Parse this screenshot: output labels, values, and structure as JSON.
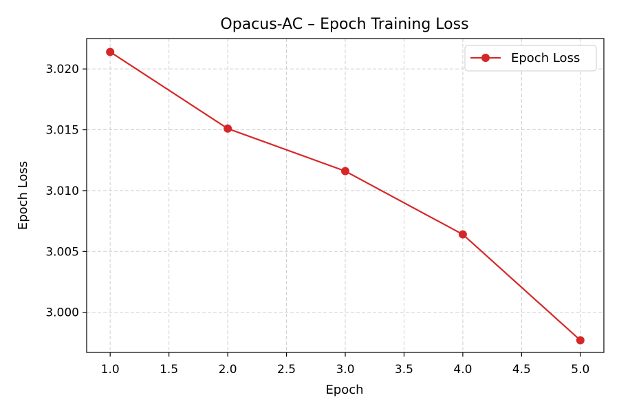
{
  "chart_data": {
    "type": "line",
    "title": "Opacus-AC – Epoch Training Loss",
    "xlabel": "Epoch",
    "ylabel": "Epoch Loss",
    "xlim": [
      0.8,
      5.2
    ],
    "ylim": [
      2.9967,
      3.0225
    ],
    "x_ticks": [
      1.0,
      1.5,
      2.0,
      2.5,
      3.0,
      3.5,
      4.0,
      4.5,
      5.0
    ],
    "x_tick_labels": [
      "1.0",
      "1.5",
      "2.0",
      "2.5",
      "3.0",
      "3.5",
      "4.0",
      "4.5",
      "5.0"
    ],
    "y_ticks": [
      3.0,
      3.005,
      3.01,
      3.015,
      3.02
    ],
    "y_tick_labels": [
      "3.000",
      "3.005",
      "3.010",
      "3.015",
      "3.020"
    ],
    "grid": true,
    "legend_position": "top-right",
    "series": [
      {
        "name": "Epoch Loss",
        "color": "#d62728",
        "marker": "circle",
        "x": [
          1,
          2,
          3,
          4,
          5
        ],
        "values": [
          3.0214,
          3.0151,
          3.0116,
          3.0064,
          2.9977
        ]
      }
    ]
  }
}
